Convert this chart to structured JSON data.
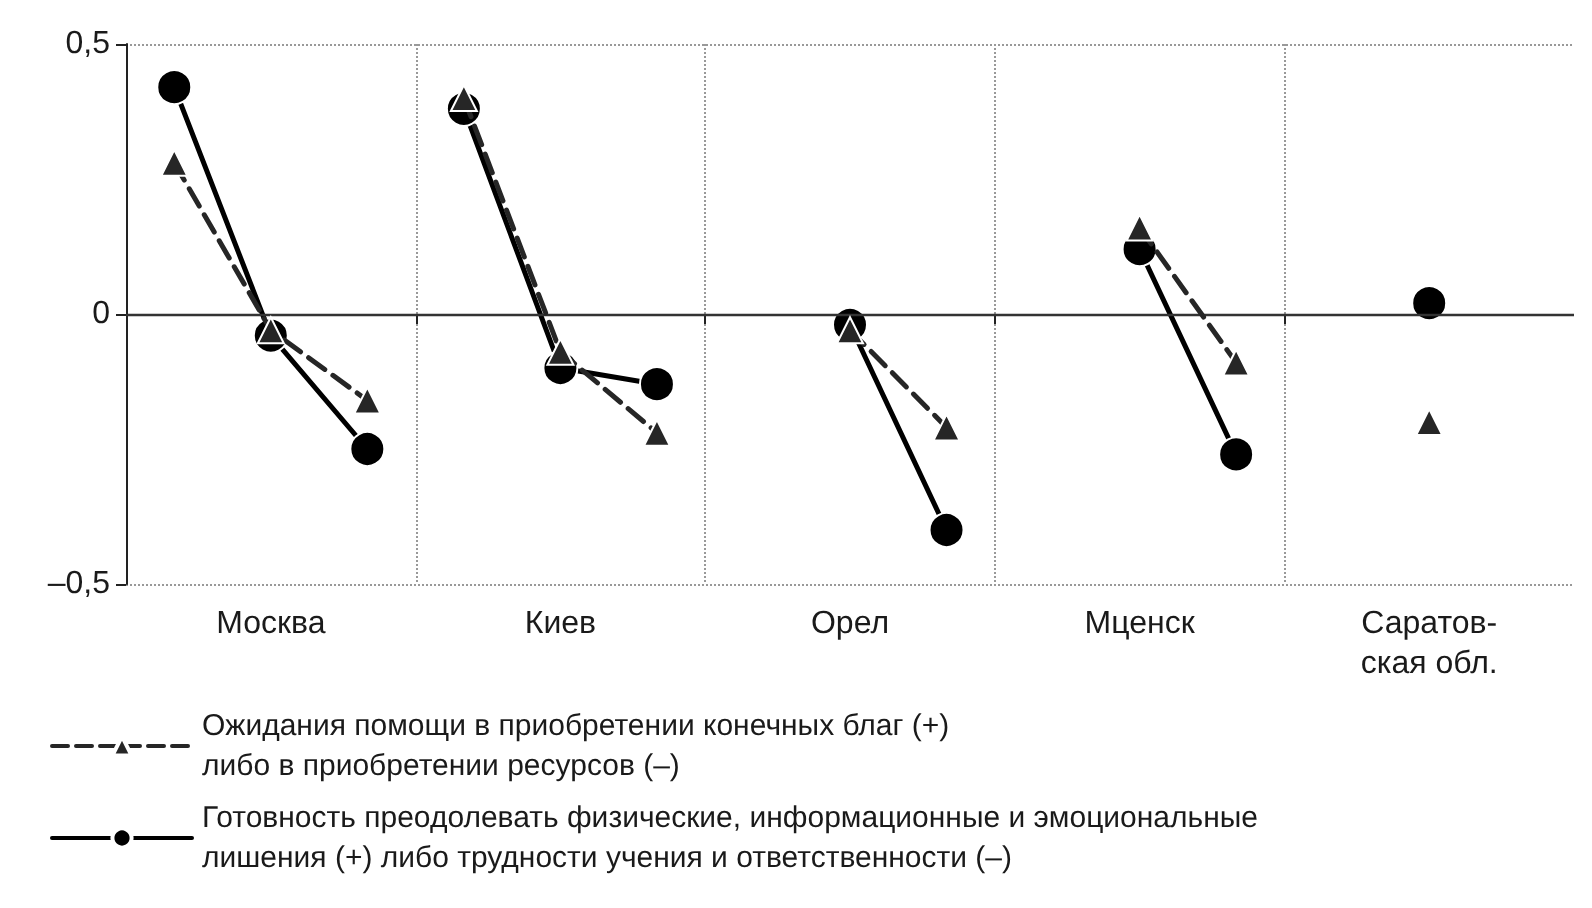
{
  "chart_data": {
    "type": "line",
    "categories": [
      null,
      "Москва",
      null,
      null,
      "Киев",
      null,
      null,
      "Орел",
      null,
      null,
      "Мценск",
      null,
      null,
      "Саратов-\nская обл.",
      null
    ],
    "ylim": [
      -0.5,
      0.5
    ],
    "yticks": [
      {
        "value": -0.5,
        "label": "–0,5"
      },
      {
        "value": 0,
        "label": "0"
      },
      {
        "value": 0.5,
        "label": "0,5"
      }
    ],
    "series": [
      {
        "name": "Ожидания помощи в приобретении конечных благ (+)\nлибо в приобретении ресурсов (–)",
        "color": "#262626",
        "marker": "triangle",
        "line_style": "dashed",
        "values": [
          0.28,
          -0.03,
          -0.16,
          0.4,
          -0.07,
          -0.22,
          null,
          -0.03,
          -0.21,
          null,
          0.16,
          -0.09,
          null,
          -0.2,
          null
        ]
      },
      {
        "name": "Готовность преодолевать физические, информационные и эмоциональные\nлишения (+) либо трудности учения и ответственности (–)",
        "color": "#000000",
        "marker": "circle",
        "line_style": "solid",
        "values": [
          0.42,
          -0.04,
          -0.25,
          0.38,
          -0.1,
          -0.13,
          null,
          -0.02,
          -0.4,
          null,
          0.12,
          -0.26,
          null,
          0.02,
          null
        ]
      }
    ],
    "ref_lines": [
      {
        "axis": "y",
        "value": 0,
        "label": null,
        "color": "#333333",
        "line_style": "solid"
      }
    ],
    "grid": true,
    "legend": "bottom"
  }
}
